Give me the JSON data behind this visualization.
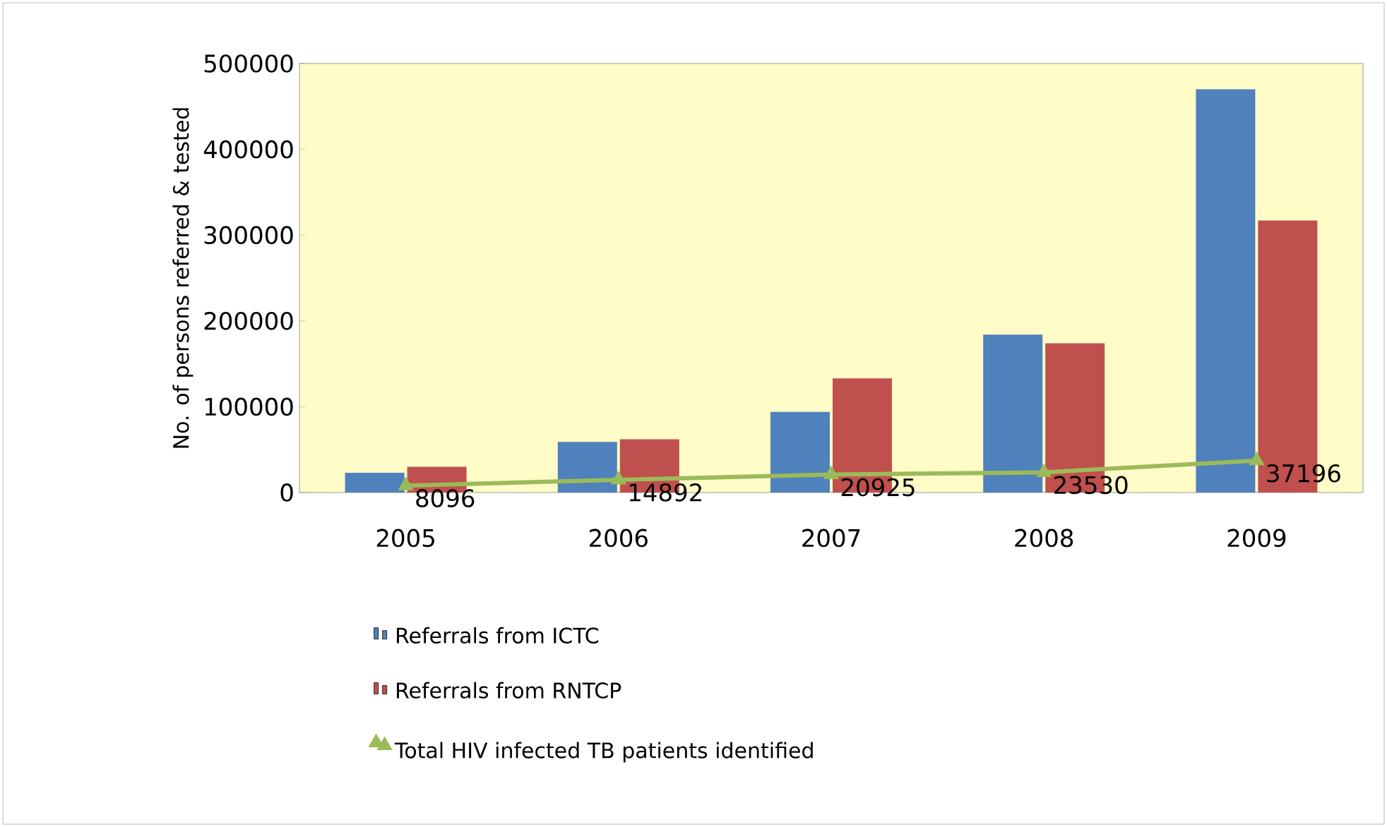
{
  "chart_data": {
    "type": "bar",
    "ylabel": "No. of persons  referred & tested",
    "categories": [
      "2005",
      "2006",
      "2007",
      "2008",
      "2009"
    ],
    "series": [
      {
        "name": "Referrals from ICTC",
        "color": "#4f81bd",
        "values": [
          23000,
          59000,
          94000,
          184000,
          470000
        ]
      },
      {
        "name": "Referrals from RNTCP",
        "color": "#c0504d",
        "values": [
          30000,
          62000,
          133000,
          174000,
          317000
        ]
      },
      {
        "name": "Total HIV infected TB patients identified",
        "type": "line",
        "color": "#9bbb59",
        "marker": "triangle",
        "values": [
          8096,
          14892,
          20925,
          23530,
          37196
        ],
        "value_labels": [
          "8096",
          "14892",
          "20925",
          "23530",
          "37196"
        ]
      }
    ],
    "ylim": [
      0,
      500000
    ],
    "yticks": [
      0,
      100000,
      200000,
      300000,
      400000,
      500000
    ],
    "legend": "bottom"
  }
}
